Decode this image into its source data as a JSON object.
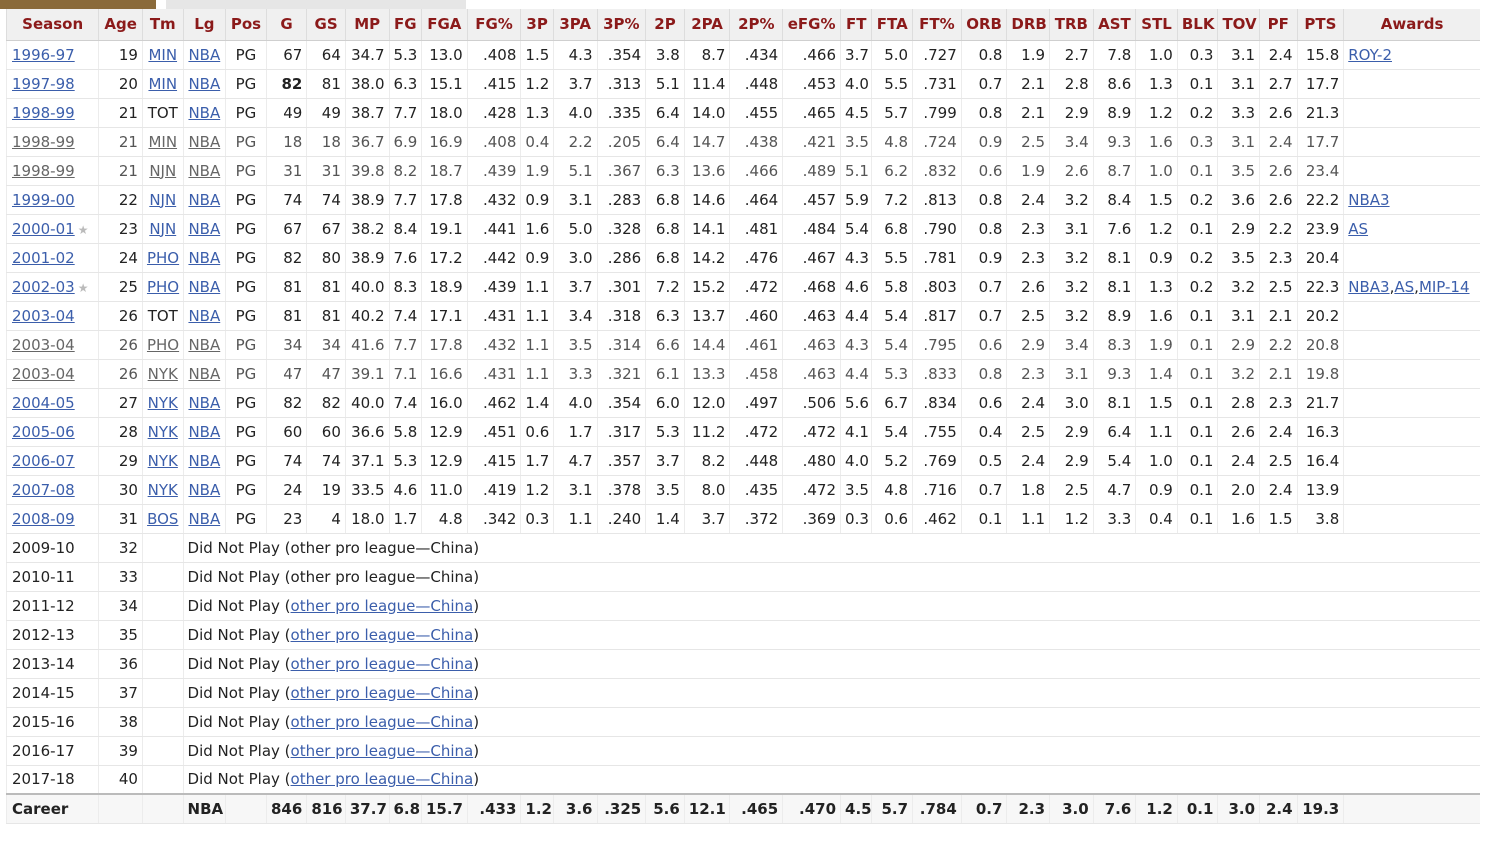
{
  "columns": [
    "Season",
    "Age",
    "Tm",
    "Lg",
    "Pos",
    "G",
    "GS",
    "MP",
    "FG",
    "FGA",
    "FG%",
    "3P",
    "3PA",
    "3P%",
    "2P",
    "2PA",
    "2P%",
    "eFG%",
    "FT",
    "FTA",
    "FT%",
    "ORB",
    "DRB",
    "TRB",
    "AST",
    "STL",
    "BLK",
    "TOV",
    "PF",
    "PTS",
    "Awards"
  ],
  "rows": [
    {
      "season": "1996-97",
      "star": false,
      "sub": false,
      "cells": [
        "19",
        "MIN",
        "NBA",
        "PG",
        "67",
        "64",
        "34.7",
        "5.3",
        "13.0",
        ".408",
        "1.5",
        "4.3",
        ".354",
        "3.8",
        "8.7",
        ".434",
        ".466",
        "3.7",
        "5.0",
        ".727",
        "0.8",
        "1.9",
        "2.7",
        "7.8",
        "1.0",
        "0.3",
        "3.1",
        "2.4",
        "15.8"
      ],
      "awards": [
        "ROY-2"
      ]
    },
    {
      "season": "1997-98",
      "star": false,
      "sub": false,
      "cells": [
        "20",
        "MIN",
        "NBA",
        "PG",
        "82",
        "81",
        "38.0",
        "6.3",
        "15.1",
        ".415",
        "1.2",
        "3.7",
        ".313",
        "5.1",
        "11.4",
        ".448",
        ".453",
        "4.0",
        "5.5",
        ".731",
        "0.7",
        "2.1",
        "2.8",
        "8.6",
        "1.3",
        "0.1",
        "3.1",
        "2.7",
        "17.7"
      ],
      "awards": []
    },
    {
      "season": "1998-99",
      "star": false,
      "sub": false,
      "cells": [
        "21",
        "TOT",
        "NBA",
        "PG",
        "49",
        "49",
        "38.7",
        "7.7",
        "18.0",
        ".428",
        "1.3",
        "4.0",
        ".335",
        "6.4",
        "14.0",
        ".455",
        ".465",
        "4.5",
        "5.7",
        ".799",
        "0.8",
        "2.1",
        "2.9",
        "8.9",
        "1.2",
        "0.2",
        "3.3",
        "2.6",
        "21.3"
      ],
      "awards": []
    },
    {
      "season": "1998-99",
      "star": false,
      "sub": true,
      "cells": [
        "21",
        "MIN",
        "NBA",
        "PG",
        "18",
        "18",
        "36.7",
        "6.9",
        "16.9",
        ".408",
        "0.4",
        "2.2",
        ".205",
        "6.4",
        "14.7",
        ".438",
        ".421",
        "3.5",
        "4.8",
        ".724",
        "0.9",
        "2.5",
        "3.4",
        "9.3",
        "1.6",
        "0.3",
        "3.1",
        "2.4",
        "17.7"
      ],
      "awards": []
    },
    {
      "season": "1998-99",
      "star": false,
      "sub": true,
      "cells": [
        "21",
        "NJN",
        "NBA",
        "PG",
        "31",
        "31",
        "39.8",
        "8.2",
        "18.7",
        ".439",
        "1.9",
        "5.1",
        ".367",
        "6.3",
        "13.6",
        ".466",
        ".489",
        "5.1",
        "6.2",
        ".832",
        "0.6",
        "1.9",
        "2.6",
        "8.7",
        "1.0",
        "0.1",
        "3.5",
        "2.6",
        "23.4"
      ],
      "awards": []
    },
    {
      "season": "1999-00",
      "star": false,
      "sub": false,
      "cells": [
        "22",
        "NJN",
        "NBA",
        "PG",
        "74",
        "74",
        "38.9",
        "7.7",
        "17.8",
        ".432",
        "0.9",
        "3.1",
        ".283",
        "6.8",
        "14.6",
        ".464",
        ".457",
        "5.9",
        "7.2",
        ".813",
        "0.8",
        "2.4",
        "3.2",
        "8.4",
        "1.5",
        "0.2",
        "3.6",
        "2.6",
        "22.2"
      ],
      "awards": [
        "NBA3"
      ]
    },
    {
      "season": "2000-01",
      "star": true,
      "sub": false,
      "cells": [
        "23",
        "NJN",
        "NBA",
        "PG",
        "67",
        "67",
        "38.2",
        "8.4",
        "19.1",
        ".441",
        "1.6",
        "5.0",
        ".328",
        "6.8",
        "14.1",
        ".481",
        ".484",
        "5.4",
        "6.8",
        ".790",
        "0.8",
        "2.3",
        "3.1",
        "7.6",
        "1.2",
        "0.1",
        "2.9",
        "2.2",
        "23.9"
      ],
      "awards": [
        "AS"
      ]
    },
    {
      "season": "2001-02",
      "star": false,
      "sub": false,
      "cells": [
        "24",
        "PHO",
        "NBA",
        "PG",
        "82",
        "80",
        "38.9",
        "7.6",
        "17.2",
        ".442",
        "0.9",
        "3.0",
        ".286",
        "6.8",
        "14.2",
        ".476",
        ".467",
        "4.3",
        "5.5",
        ".781",
        "0.9",
        "2.3",
        "3.2",
        "8.1",
        "0.9",
        "0.2",
        "3.5",
        "2.3",
        "20.4"
      ],
      "awards": []
    },
    {
      "season": "2002-03",
      "star": true,
      "sub": false,
      "cells": [
        "25",
        "PHO",
        "NBA",
        "PG",
        "81",
        "81",
        "40.0",
        "8.3",
        "18.9",
        ".439",
        "1.1",
        "3.7",
        ".301",
        "7.2",
        "15.2",
        ".472",
        ".468",
        "4.6",
        "5.8",
        ".803",
        "0.7",
        "2.6",
        "3.2",
        "8.1",
        "1.3",
        "0.2",
        "3.2",
        "2.5",
        "22.3"
      ],
      "awards": [
        "NBA3",
        "AS",
        "MIP-14"
      ]
    },
    {
      "season": "2003-04",
      "star": false,
      "sub": false,
      "cells": [
        "26",
        "TOT",
        "NBA",
        "PG",
        "81",
        "81",
        "40.2",
        "7.4",
        "17.1",
        ".431",
        "1.1",
        "3.4",
        ".318",
        "6.3",
        "13.7",
        ".460",
        ".463",
        "4.4",
        "5.4",
        ".817",
        "0.7",
        "2.5",
        "3.2",
        "8.9",
        "1.6",
        "0.1",
        "3.1",
        "2.1",
        "20.2"
      ],
      "awards": []
    },
    {
      "season": "2003-04",
      "star": false,
      "sub": true,
      "cells": [
        "26",
        "PHO",
        "NBA",
        "PG",
        "34",
        "34",
        "41.6",
        "7.7",
        "17.8",
        ".432",
        "1.1",
        "3.5",
        ".314",
        "6.6",
        "14.4",
        ".461",
        ".463",
        "4.3",
        "5.4",
        ".795",
        "0.6",
        "2.9",
        "3.4",
        "8.3",
        "1.9",
        "0.1",
        "2.9",
        "2.2",
        "20.8"
      ],
      "awards": []
    },
    {
      "season": "2003-04",
      "star": false,
      "sub": true,
      "cells": [
        "26",
        "NYK",
        "NBA",
        "PG",
        "47",
        "47",
        "39.1",
        "7.1",
        "16.6",
        ".431",
        "1.1",
        "3.3",
        ".321",
        "6.1",
        "13.3",
        ".458",
        ".463",
        "4.4",
        "5.3",
        ".833",
        "0.8",
        "2.3",
        "3.1",
        "9.3",
        "1.4",
        "0.1",
        "3.2",
        "2.1",
        "19.8"
      ],
      "awards": []
    },
    {
      "season": "2004-05",
      "star": false,
      "sub": false,
      "cells": [
        "27",
        "NYK",
        "NBA",
        "PG",
        "82",
        "82",
        "40.0",
        "7.4",
        "16.0",
        ".462",
        "1.4",
        "4.0",
        ".354",
        "6.0",
        "12.0",
        ".497",
        ".506",
        "5.6",
        "6.7",
        ".834",
        "0.6",
        "2.4",
        "3.0",
        "8.1",
        "1.5",
        "0.1",
        "2.8",
        "2.3",
        "21.7"
      ],
      "awards": []
    },
    {
      "season": "2005-06",
      "star": false,
      "sub": false,
      "cells": [
        "28",
        "NYK",
        "NBA",
        "PG",
        "60",
        "60",
        "36.6",
        "5.8",
        "12.9",
        ".451",
        "0.6",
        "1.7",
        ".317",
        "5.3",
        "11.2",
        ".472",
        ".472",
        "4.1",
        "5.4",
        ".755",
        "0.4",
        "2.5",
        "2.9",
        "6.4",
        "1.1",
        "0.1",
        "2.6",
        "2.4",
        "16.3"
      ],
      "awards": []
    },
    {
      "season": "2006-07",
      "star": false,
      "sub": false,
      "cells": [
        "29",
        "NYK",
        "NBA",
        "PG",
        "74",
        "74",
        "37.1",
        "5.3",
        "12.9",
        ".415",
        "1.7",
        "4.7",
        ".357",
        "3.7",
        "8.2",
        ".448",
        ".480",
        "4.0",
        "5.2",
        ".769",
        "0.5",
        "2.4",
        "2.9",
        "5.4",
        "1.0",
        "0.1",
        "2.4",
        "2.5",
        "16.4"
      ],
      "awards": []
    },
    {
      "season": "2007-08",
      "star": false,
      "sub": false,
      "cells": [
        "30",
        "NYK",
        "NBA",
        "PG",
        "24",
        "19",
        "33.5",
        "4.6",
        "11.0",
        ".419",
        "1.2",
        "3.1",
        ".378",
        "3.5",
        "8.0",
        ".435",
        ".472",
        "3.5",
        "4.8",
        ".716",
        "0.7",
        "1.8",
        "2.5",
        "4.7",
        "0.9",
        "0.1",
        "2.0",
        "2.4",
        "13.9"
      ],
      "awards": []
    },
    {
      "season": "2008-09",
      "star": false,
      "sub": false,
      "cells": [
        "31",
        "BOS",
        "NBA",
        "PG",
        "23",
        "4",
        "18.0",
        "1.7",
        "4.8",
        ".342",
        "0.3",
        "1.1",
        ".240",
        "1.4",
        "3.7",
        ".372",
        ".369",
        "0.3",
        "0.6",
        ".462",
        "0.1",
        "1.1",
        "1.2",
        "3.3",
        "0.4",
        "0.1",
        "1.6",
        "1.5",
        "3.8"
      ],
      "awards": []
    }
  ],
  "dnp_rows": [
    {
      "season": "2009-10",
      "age": "32",
      "prefix": "Did Not Play (",
      "league": "other pro league—China",
      "suffix": ")",
      "linked": false
    },
    {
      "season": "2010-11",
      "age": "33",
      "prefix": "Did Not Play (",
      "league": "other pro league—China",
      "suffix": ")",
      "linked": false
    },
    {
      "season": "2011-12",
      "age": "34",
      "prefix": "Did Not Play (",
      "league": "other pro league—China",
      "suffix": ")",
      "linked": true
    },
    {
      "season": "2012-13",
      "age": "35",
      "prefix": "Did Not Play (",
      "league": "other pro league—China",
      "suffix": ")",
      "linked": true
    },
    {
      "season": "2013-14",
      "age": "36",
      "prefix": "Did Not Play (",
      "league": "other pro league—China",
      "suffix": ")",
      "linked": true
    },
    {
      "season": "2014-15",
      "age": "37",
      "prefix": "Did Not Play (",
      "league": "other pro league—China",
      "suffix": ")",
      "linked": true
    },
    {
      "season": "2015-16",
      "age": "38",
      "prefix": "Did Not Play (",
      "league": "other pro league—China",
      "suffix": ")",
      "linked": true
    },
    {
      "season": "2016-17",
      "age": "39",
      "prefix": "Did Not Play (",
      "league": "other pro league—China",
      "suffix": ")",
      "linked": true
    },
    {
      "season": "2017-18",
      "age": "40",
      "prefix": "Did Not Play (",
      "league": "other pro league—China",
      "suffix": ")",
      "linked": true
    }
  ],
  "career": {
    "label": "Career",
    "lg": "NBA",
    "cells": [
      "846",
      "816",
      "37.7",
      "6.8",
      "15.7",
      ".433",
      "1.2",
      "3.6",
      ".325",
      "5.6",
      "12.1",
      ".465",
      ".470",
      "4.5",
      "5.7",
      ".784",
      "0.7",
      "2.3",
      "3.0",
      "7.6",
      "1.2",
      "0.1",
      "3.0",
      "2.4",
      "19.3"
    ]
  },
  "bold_values": [
    {
      "row": 1,
      "col": "G"
    }
  ],
  "icons": {
    "star": "star-icon"
  }
}
